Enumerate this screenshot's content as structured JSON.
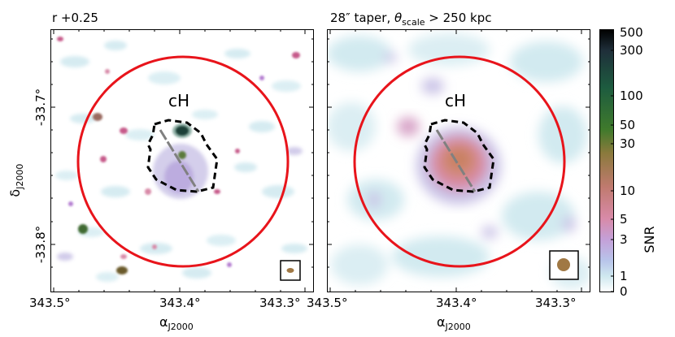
{
  "left_panel": {
    "title": "r +0.25",
    "annotation": "cH",
    "ytick_labels": [
      "-33.7°",
      "-33.8°"
    ],
    "xtick_labels": [
      "343.5°",
      "343.4°",
      "343.3°"
    ]
  },
  "right_panel": {
    "title_prefix": "28″ taper, ",
    "title_theta": "θ",
    "title_sub": "scale",
    "title_suffix": " > 250 kpc",
    "annotation": "cH",
    "xtick_labels": [
      "343.5°",
      "343.4°",
      "343.3°"
    ]
  },
  "axes": {
    "ylabel_main": "δ",
    "ylabel_sub": "J2000",
    "xlabel_main": "α",
    "xlabel_sub": "J2000"
  },
  "colorbar": {
    "label": "SNR",
    "tick_labels": [
      "500",
      "300",
      "100",
      "50",
      "30",
      "10",
      "5",
      "3",
      "1",
      "0"
    ],
    "colors": [
      "#000000",
      "#1f2f3a",
      "#1d5b3f",
      "#3f7a2c",
      "#8a7a3c",
      "#c07a6f",
      "#d88aa8",
      "#c4a0d8",
      "#b8c4ea",
      "#cfe8ef",
      "#ffffff"
    ]
  },
  "overlays": {
    "circle_color": "#e8141b",
    "contour_color": "#000000",
    "axis_line_color": "#808080",
    "beam_color": "#a07844"
  }
}
